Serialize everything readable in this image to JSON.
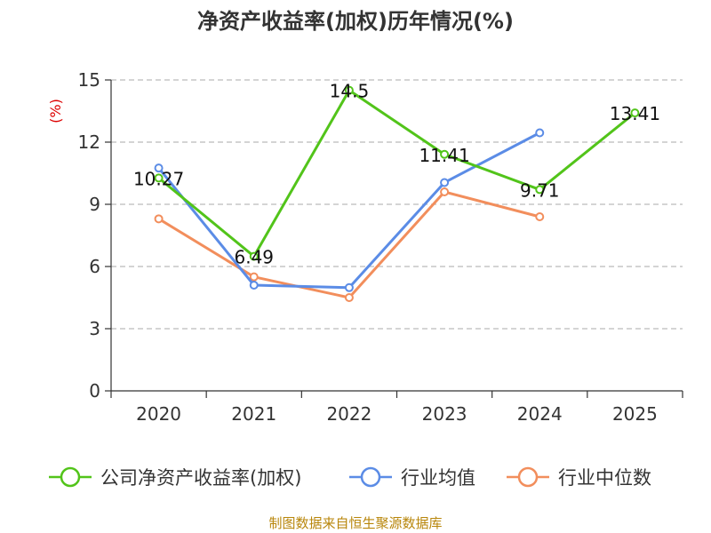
{
  "chart_data": {
    "type": "line",
    "title": "净资产收益率(加权)历年情况(%)",
    "xlabel": "",
    "ylabel": "(%)",
    "ylabel_color": "#dd0000",
    "categories": [
      "2020",
      "2021",
      "2022",
      "2023",
      "2024",
      "2025"
    ],
    "yticks": [
      0,
      3,
      6,
      9,
      12,
      15
    ],
    "ylim": [
      0,
      15
    ],
    "grid": true,
    "legend_position": "bottom",
    "series": [
      {
        "name": "公司净资产收益率(加权)",
        "color": "#52c41a",
        "values": [
          10.27,
          6.49,
          14.5,
          11.41,
          9.71,
          13.41
        ],
        "labels": [
          "10.27",
          "6.49",
          "14.5",
          "11.41",
          "9.71",
          "13.41"
        ]
      },
      {
        "name": "行业均值",
        "color": "#5b8ce6",
        "values": [
          10.75,
          5.1,
          4.98,
          10.05,
          12.45,
          null
        ]
      },
      {
        "name": "行业中位数",
        "color": "#f28e5c",
        "values": [
          8.3,
          5.5,
          4.5,
          9.6,
          8.4,
          null
        ]
      }
    ]
  },
  "source_note": "制图数据来自恒生聚源数据库"
}
